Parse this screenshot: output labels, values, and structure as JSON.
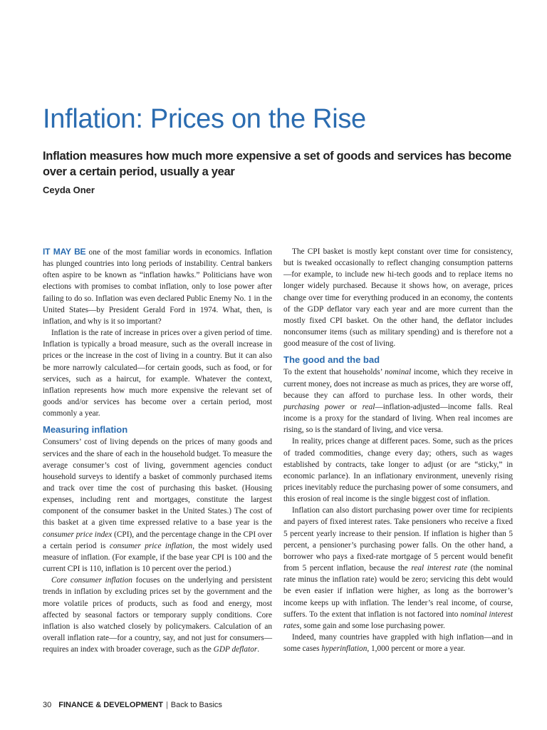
{
  "article": {
    "title": "Inflation: Prices on the Rise",
    "dek": "Inflation measures how much more expensive a set of goods and services has become over a certain period, usually a year",
    "author": "Ceyda Oner"
  },
  "body": {
    "left": {
      "p1_runin": "IT MAY BE",
      "p1": " one of the most familiar words in economics. Inflation has plunged countries into long periods of instability. Central bankers often aspire to be known as “inflation hawks.” Politicians have won elections with promises to combat inflation, only to lose power after failing to do so. Inflation was even declared Public Enemy No. 1 in the United States—by President Gerald Ford in 1974. What, then, is inflation, and why is it so important?",
      "p2": "Inflation is the rate of increase in prices over a given period of time. Inflation is typically a broad measure, such as the overall increase in prices or the increase in the cost of living in a country. But it can also be more narrowly calculated—for certain goods, such as food, or for services, such as a haircut, for example. Whatever the context, inflation represents how much more expensive the relevant set of goods and/or services has become over a certain period, most commonly a year.",
      "h_measuring": "Measuring inflation",
      "p3a": "Consumers’ cost of living depends on the prices of many goods and services and the share of each in the household budget. To measure the average consumer’s cost of living, government agencies conduct household surveys to identify a basket of commonly purchased items and track over time the cost of purchasing this basket. (Housing expenses, including rent and mortgages, constitute the largest component of the consumer basket in the United States.) The cost of this basket at a given time expressed relative to a base year is the ",
      "p3_term1": "consumer price index",
      "p3b": " (CPI), and the percentage change in the CPI over a certain period is ",
      "p3_term2": "consumer price inflation",
      "p3c": ", the most widely used measure of inflation. (For example, if the base year CPI is 100 and the current CPI is 110, inflation is 10 percent over the period.)",
      "p4_term": "Core consumer inflation",
      "p4a": " focuses on the underlying and persistent trends in inflation by excluding prices set by the government and the more volatile prices of products, such as food and energy, most affected by seasonal factors or temporary supply conditions. Core inflation is also watched closely by policymakers. Calculation of an overall inflation rate—for a country, say, and not just for consumers—requires an index with broader coverage, such as the ",
      "p4_term2": "GDP deflator",
      "p4b": "."
    },
    "right": {
      "p1": "The CPI basket is mostly kept constant over time for consistency, but is tweaked occasionally to reflect changing consumption patterns—for example, to include new hi-tech goods and to replace items no longer widely purchased. Because it shows how, on average, prices change over time for everything produced in an economy, the contents of the GDP deflator vary each year and are more current than the mostly fixed CPI basket. On the other hand, the deflator includes nonconsumer items (such as military spending) and is therefore not a good measure of the cost of living.",
      "h_good_bad": "The good and the bad",
      "p2a": "To the extent that households’ ",
      "p2_term1": "nominal",
      "p2b": " income, which they receive in current money, does not increase as much as prices, they are worse off, because they can afford to purchase less. In other words, their ",
      "p2_term2": "purchasing power",
      "p2c": " or ",
      "p2_term3": "real",
      "p2d": "—inflation-adjusted—income falls. Real income is a proxy for the standard of living. When real incomes are rising, so is the standard of living, and vice versa.",
      "p3": "In reality, prices change at different paces. Some, such as the prices of traded commodities, change every day; others, such as wages established by contracts, take longer to adjust (or are “sticky,” in economic parlance). In an inflationary environment, unevenly rising prices inevitably reduce the purchasing power of some consumers, and this erosion of real income is the single biggest cost of inflation.",
      "p4a": "Inflation can also distort purchasing power over time for recipients and payers of fixed interest rates. Take pensioners who receive a fixed 5 percent yearly increase to their pension. If inflation is higher than 5 percent, a pensioner’s purchasing power falls. On the other hand, a borrower who pays a fixed-rate mortgage of 5 percent would benefit from 5 percent inflation, because the ",
      "p4_term1": "real interest rate",
      "p4b": " (the nominal rate minus the inflation rate) would be zero; servicing this debt would be even easier if inflation were higher, as long as the borrower’s income keeps up with inflation. The lender’s real income, of course, suffers. To the extent that inflation is not factored into ",
      "p4_term2": "nominal interest rates",
      "p4c": ", some gain and some lose purchasing power.",
      "p5a": "Indeed, many countries have grappled with high inflation—and in some cases ",
      "p5_term": "hyperinflation",
      "p5b": ", 1,000 percent or more a year."
    }
  },
  "footer": {
    "page_number": "30",
    "magazine": "FINANCE & DEVELOPMENT",
    "separator": "|",
    "section": "Back to Basics"
  },
  "colors": {
    "accent": "#2b6cb0",
    "text": "#222222"
  }
}
